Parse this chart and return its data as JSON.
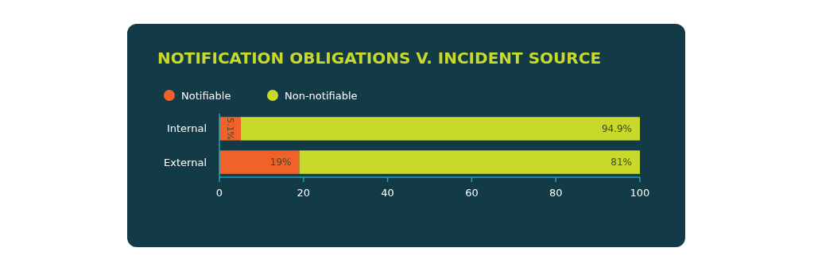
{
  "chart_data": {
    "type": "bar",
    "orientation": "horizontal",
    "stacked": true,
    "title": "NOTIFICATION OBLIGATIONS V. INCIDENT SOURCE",
    "categories": [
      "Internal",
      "External"
    ],
    "series": [
      {
        "name": "Notifiable",
        "color": "#f0622a",
        "values": [
          5.1,
          19
        ],
        "value_labels": [
          "5.1%",
          "19%"
        ]
      },
      {
        "name": "Non-notifiable",
        "color": "#c8d92b",
        "values": [
          94.9,
          81
        ],
        "value_labels": [
          "94.9%",
          "81%"
        ]
      }
    ],
    "xlim": [
      0,
      100
    ],
    "xticks": [
      0,
      20,
      40,
      60,
      80,
      100
    ],
    "legend": "top left",
    "grid": false
  }
}
